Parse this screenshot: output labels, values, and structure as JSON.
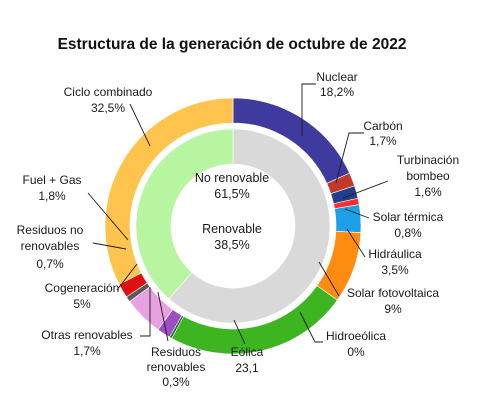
{
  "chart_data": {
    "type": "pie",
    "title": "Estructura de la generación de octubre de 2022",
    "inner_ring": [
      {
        "name": "No renovable",
        "value": 61.5,
        "label": "No renovable",
        "value_label": "61,5%",
        "color": "#d9d9d9"
      },
      {
        "name": "Renovable",
        "value": 38.5,
        "label": "Renovable",
        "value_label": "38,5%",
        "color": "#b7f5a0"
      }
    ],
    "outer_ring": [
      {
        "name": "Nuclear",
        "value": 18.2,
        "label": "Nuclear",
        "value_label": "18,2%",
        "color": "#3f3a9e"
      },
      {
        "name": "Carbón",
        "value": 1.7,
        "label": "Carbón",
        "value_label": "1,7%",
        "color": "#c0392b"
      },
      {
        "name": "Turbinación bombeo",
        "value": 1.6,
        "label": "Turbinación bombeo",
        "value_label": "1,6%",
        "color": "#1f3f8a"
      },
      {
        "name": "Solar térmica",
        "value": 0.8,
        "label": "Solar térmica",
        "value_label": "0,8%",
        "color": "#ff2f2f"
      },
      {
        "name": "Hidráulica",
        "value": 3.5,
        "label": "Hidráulica",
        "value_label": "3,5%",
        "color": "#1ea0e8"
      },
      {
        "name": "Solar fotovoltaica",
        "value": 9.0,
        "label": "Solar fotovoltaica",
        "value_label": "9%",
        "color": "#ff8c10"
      },
      {
        "name": "Hidroeólica",
        "value": 0.0,
        "label": "Hidroeólica",
        "value_label": "0%",
        "color": "#2e7d32"
      },
      {
        "name": "Eólica",
        "value": 23.1,
        "label": "Eólica",
        "value_label": "23,1",
        "color": "#3cb521"
      },
      {
        "name": "Residuos renovables",
        "value": 0.3,
        "label": "Residuos renovables",
        "value_label": "0,3%",
        "color": "#1b5e20"
      },
      {
        "name": "Otras renovables",
        "value": 1.7,
        "label": "Otras renovables",
        "value_label": "1,7%",
        "color": "#9c4fc4"
      },
      {
        "name": "Cogeneración",
        "value": 5.0,
        "label": "Cogeneración",
        "value_label": "5%",
        "color": "#e7a0e0"
      },
      {
        "name": "Residuos no renovables",
        "value": 0.7,
        "label": "Residuos no renovables",
        "value_label": "0,7%",
        "color": "#5a5a5a"
      },
      {
        "name": "Fuel + Gas",
        "value": 1.8,
        "label": "Fuel + Gas",
        "value_label": "1,8%",
        "color": "#e01010"
      },
      {
        "name": "Ciclo combinado",
        "value": 32.5,
        "label": "Ciclo combinado",
        "value_label": "32,5%",
        "color": "#ffc44d"
      }
    ]
  }
}
